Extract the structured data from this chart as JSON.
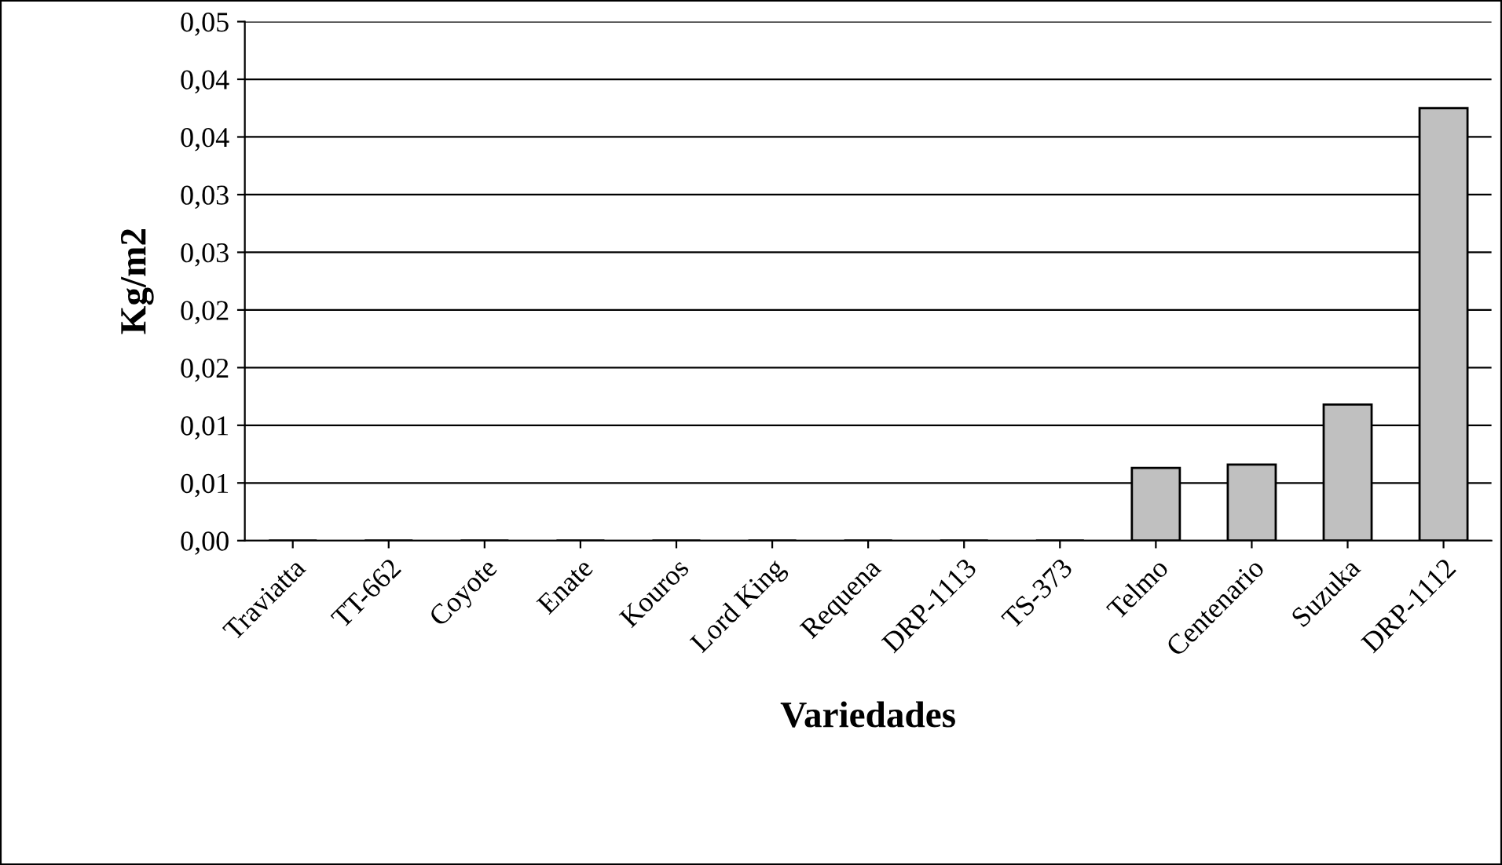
{
  "chart_data": {
    "type": "bar",
    "xlabel": "Variedades",
    "ylabel": "Kg/m2",
    "categories": [
      "Traviatta",
      "TT-662",
      "Coyote",
      "Enate",
      "Kouros",
      "Lord King",
      "Requena",
      "DRP-1113",
      "TS-373",
      "Telmo",
      "Centenario",
      "Suzuka",
      "DRP-1112"
    ],
    "values": [
      0,
      0,
      0,
      0,
      0,
      0,
      0,
      0,
      0,
      0.0063,
      0.0066,
      0.0118,
      0.0375
    ],
    "color": "#c0c0c0",
    "ylim": [
      0,
      0.045
    ],
    "yticks": [
      {
        "value": 0,
        "label": "0,00"
      },
      {
        "value": 0.005,
        "label": "0,01"
      },
      {
        "value": 0.01,
        "label": "0,01"
      },
      {
        "value": 0.015,
        "label": "0,02"
      },
      {
        "value": 0.02,
        "label": "0,02"
      },
      {
        "value": 0.025,
        "label": "0,03"
      },
      {
        "value": 0.03,
        "label": "0,03"
      },
      {
        "value": 0.035,
        "label": "0,04"
      },
      {
        "value": 0.04,
        "label": "0,04"
      },
      {
        "value": 0.045,
        "label": "0,05"
      }
    ],
    "grid": "y",
    "legend": false
  }
}
